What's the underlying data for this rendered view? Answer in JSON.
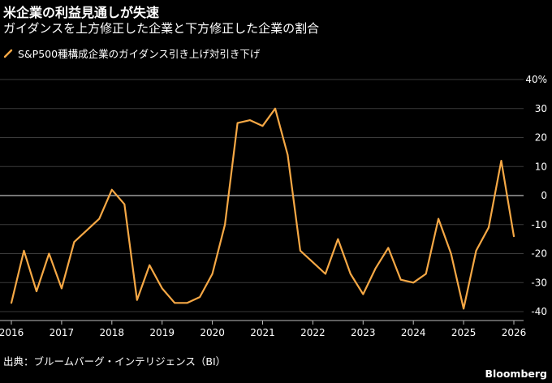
{
  "header": {
    "title": "米企業の利益見通しが失速",
    "subtitle": "ガイダンスを上方修正した企業と下方修正した企業の割合"
  },
  "legend": {
    "label": "S&P500種構成企業のガイダンス引き上げ対引き下げ",
    "color": "#f6a845"
  },
  "footer": {
    "source": "出典：ブルームバーグ・インテリジェンス（BI）",
    "brand": "Bloomberg"
  },
  "chart_data": {
    "type": "line",
    "title": "米企業の利益見通しが失速",
    "subtitle": "ガイダンスを上方修正した企業と下方修正した企業の割合",
    "xlabel": "",
    "ylabel": "",
    "xlim": [
      2016,
      2026.2
    ],
    "ylim": [
      -42,
      41
    ],
    "x_ticks": [
      "2016",
      "2017",
      "2018",
      "2019",
      "2020",
      "2021",
      "2022",
      "2023",
      "2024",
      "2025",
      "2026"
    ],
    "y_ticks": [
      "40%",
      "30",
      "20",
      "10",
      "0",
      "-10",
      "-20",
      "-30",
      "-40"
    ],
    "y_tick_values": [
      40,
      30,
      20,
      10,
      0,
      -10,
      -20,
      -30,
      -40
    ],
    "grid": "horizontal",
    "zero_line": true,
    "series": [
      {
        "name": "S&P500種構成企業のガイダンス引き上げ対引き下げ",
        "color": "#f6a845",
        "x": [
          2016.0,
          2016.25,
          2016.5,
          2016.75,
          2017.0,
          2017.25,
          2017.5,
          2017.75,
          2018.0,
          2018.25,
          2018.5,
          2018.75,
          2019.0,
          2019.25,
          2019.5,
          2019.75,
          2020.0,
          2020.25,
          2020.5,
          2020.75,
          2021.0,
          2021.25,
          2021.5,
          2021.75,
          2022.0,
          2022.25,
          2022.5,
          2022.75,
          2023.0,
          2023.25,
          2023.5,
          2023.75,
          2024.0,
          2024.25,
          2024.5,
          2024.75,
          2025.0,
          2025.25,
          2025.5,
          2025.75,
          2026.0
        ],
        "values": [
          -37,
          -19,
          -33,
          -20,
          -32,
          -16,
          -12,
          -8,
          2,
          -3,
          -36,
          -24,
          -32,
          -37,
          -37,
          -35,
          -27,
          -10,
          25,
          26,
          24,
          30,
          14,
          -19,
          -23,
          -27,
          -15,
          -27,
          -34,
          -25,
          -18,
          -29,
          -30,
          -27,
          -8,
          -20,
          -39,
          -19,
          -11,
          12,
          -14
        ]
      }
    ]
  }
}
